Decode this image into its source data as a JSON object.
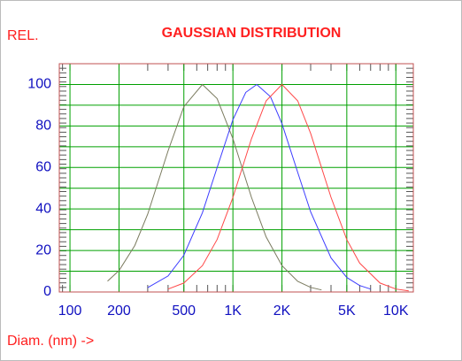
{
  "chart_data": {
    "type": "line",
    "title": "GAUSSIAN DISTRIBUTION",
    "y_label": "REL.",
    "x_label": "Diam. (nm) ->",
    "log_x": true,
    "grid": true,
    "grid_color": "#00a000",
    "xlim": [
      86,
      12800
    ],
    "ylim": [
      0,
      110
    ],
    "xticks": [
      100,
      200,
      500,
      {
        "value": 1000,
        "label": "1K"
      },
      {
        "value": 2000,
        "label": "2K"
      },
      {
        "value": 5000,
        "label": "5K"
      },
      {
        "value": 10000,
        "label": "10K"
      }
    ],
    "yticks": [
      0,
      20,
      40,
      60,
      80,
      100
    ],
    "series": [
      {
        "color": "#7a7a5e",
        "x": [
          170,
          200,
          250,
          300,
          400,
          500,
          650,
          800,
          1000,
          1300,
          1600,
          2000,
          2500,
          3000,
          3500
        ],
        "values": [
          5.2,
          10.3,
          22.4,
          37.5,
          68,
          89.3,
          100,
          93.2,
          73.8,
          45.6,
          26.5,
          12.7,
          5.1,
          2.2,
          1.0
        ]
      },
      {
        "color": "#3c3cff",
        "x": [
          300,
          400,
          500,
          650,
          800,
          1000,
          1200,
          1400,
          1700,
          2000,
          2500,
          3000,
          4000,
          5000,
          6000,
          7000
        ],
        "values": [
          2.1,
          7.7,
          17.7,
          38.2,
          59.9,
          83.1,
          96.2,
          100,
          94.1,
          81.1,
          57.6,
          38.6,
          16.4,
          7.0,
          3.1,
          1.4
        ]
      },
      {
        "color": "#ff4848",
        "x": [
          400,
          500,
          650,
          800,
          1000,
          1300,
          1600,
          2000,
          2500,
          3000,
          4000,
          5000,
          6000,
          8000,
          10000,
          12000
        ],
        "values": [
          1.4,
          4.3,
          12.7,
          25.3,
          45.6,
          73.8,
          92.1,
          100,
          92.1,
          76.4,
          45.6,
          25.3,
          13.9,
          4.3,
          1.4,
          0.5
        ]
      }
    ]
  }
}
